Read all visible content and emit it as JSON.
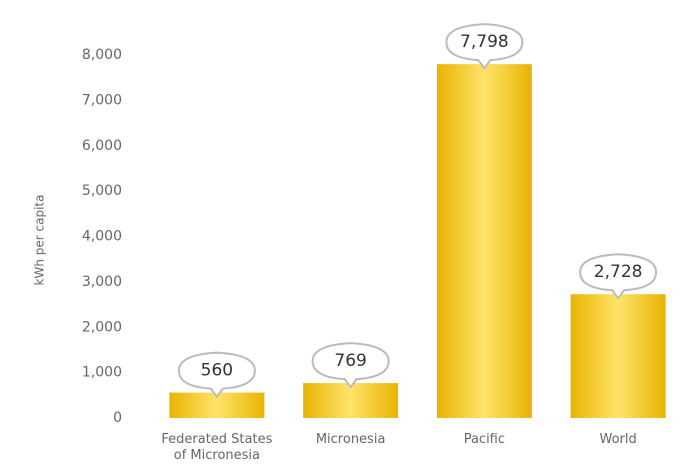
{
  "chart_data": {
    "type": "bar",
    "y_label": "kWh per capita",
    "categories": [
      "Federated States of Micronesia",
      "Micronesia",
      "Pacific",
      "World"
    ],
    "values": [
      560,
      769,
      7798,
      2728
    ],
    "value_labels": [
      "560",
      "769",
      "7,798",
      "2,728"
    ],
    "color": "#e8b400",
    "ylim": [
      0,
      8000
    ],
    "yticks": [
      0,
      {
        "value": 1000,
        "label": "1,000"
      },
      {
        "value": 2000,
        "label": "2,000"
      },
      {
        "value": 3000,
        "label": "3,000"
      },
      {
        "value": 4000,
        "label": "4,000"
      },
      {
        "value": 5000,
        "label": "5,000"
      },
      {
        "value": 6000,
        "label": "6,000"
      },
      {
        "value": 7000,
        "label": "7,000"
      },
      {
        "value": 8000,
        "label": "8,000"
      }
    ],
    "grid": false
  }
}
